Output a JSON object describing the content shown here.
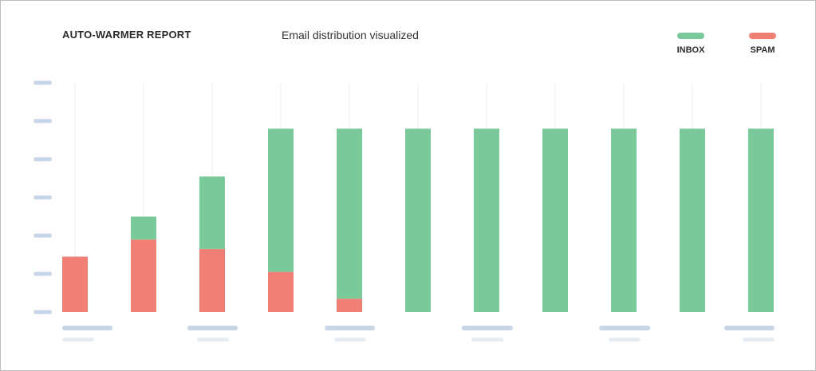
{
  "header": {
    "title": "AUTO-WARMER REPORT",
    "subtitle": "Email distribution visualized"
  },
  "legend": [
    {
      "label": "INBOX",
      "color": "#79c99a"
    },
    {
      "label": "SPAM",
      "color": "#f07f76"
    }
  ],
  "chart_data": {
    "type": "bar",
    "stacked": true,
    "categories": [
      "",
      "",
      "",
      "",
      "",
      "",
      "",
      "",
      "",
      "",
      ""
    ],
    "series": [
      {
        "name": "SPAM",
        "color": "#f07f76",
        "values": [
          1.45,
          1.9,
          1.65,
          1.05,
          0.35,
          0,
          0,
          0,
          0,
          0,
          0
        ]
      },
      {
        "name": "INBOX",
        "color": "#79c99a",
        "values": [
          0,
          0.6,
          1.9,
          3.75,
          4.45,
          4.8,
          4.8,
          4.8,
          4.8,
          4.8,
          4.8
        ]
      }
    ],
    "ylim": [
      0,
      6
    ],
    "grid": "vertical",
    "legend_position": "top-right",
    "axis_tick_placeholder_color": "#c7d6e4"
  }
}
